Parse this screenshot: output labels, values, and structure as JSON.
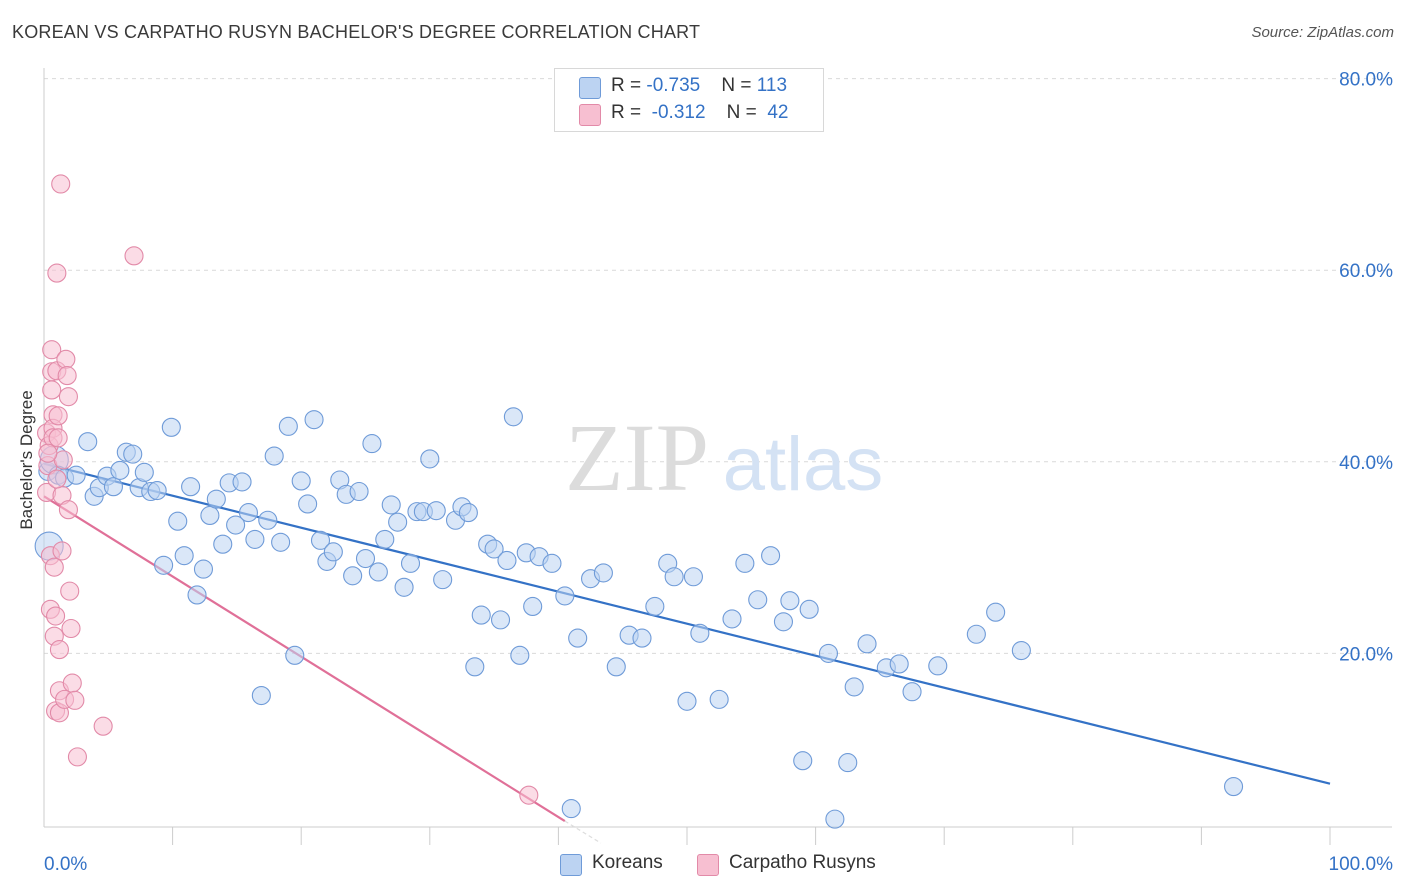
{
  "header": {
    "title": "KOREAN VS CARPATHO RUSYN BACHELOR'S DEGREE CORRELATION CHART",
    "source": "Source: ZipAtlas.com"
  },
  "watermark": {
    "zip": "ZIP",
    "atlas": "atlas"
  },
  "colors": {
    "blue": "#3472c6",
    "blue_fill": "#bcd3f2",
    "pink": "#e07098",
    "pink_fill": "#f7bfd1",
    "grid": "#d9d9d9",
    "tick_label": "#3472c6"
  },
  "legend": {
    "rows": [
      {
        "r_label": "R = ",
        "r_value": "-0.735",
        "n_label": "N = ",
        "n_value": "113",
        "color": "#bcd3f2",
        "border": "#6f9bd8"
      },
      {
        "r_label": "R = ",
        "r_value": "-0.312",
        "n_label": "N = ",
        "n_value": "42",
        "color": "#f7bfd1",
        "border": "#e28aa8"
      }
    ]
  },
  "bottom_legend": {
    "koreans": "Koreans",
    "rusyns": "Carpatho Rusyns"
  },
  "chart_data": {
    "type": "scatter",
    "xlabel": "",
    "ylabel": "Bachelor's Degree",
    "xlim": [
      0,
      100
    ],
    "ylim": [
      0,
      82
    ],
    "x_tick_labels": [
      "0.0%",
      "100.0%"
    ],
    "y_ticks": [
      20,
      40,
      60,
      80
    ],
    "y_tick_labels": [
      "20.0%",
      "40.0%",
      "60.0%",
      "80.0%"
    ],
    "grid": true,
    "legend_position": "top-center",
    "series": [
      {
        "name": "Koreans",
        "color": "#3472c6",
        "trend": {
          "x": [
            0,
            100
          ],
          "y": [
            39.8,
            6.4
          ]
        },
        "points": [
          [
            0.3,
            39.0
          ],
          [
            0.4,
            31.2
          ],
          [
            0.8,
            40.2
          ],
          [
            1.1,
            38.6
          ],
          [
            1.6,
            38.3
          ],
          [
            2.5,
            38.6
          ],
          [
            3.4,
            42.1
          ],
          [
            3.9,
            36.4
          ],
          [
            4.3,
            37.3
          ],
          [
            4.9,
            38.5
          ],
          [
            5.4,
            37.4
          ],
          [
            5.9,
            39.1
          ],
          [
            6.4,
            41.0
          ],
          [
            6.9,
            40.8
          ],
          [
            7.4,
            37.3
          ],
          [
            7.8,
            38.9
          ],
          [
            8.3,
            36.9
          ],
          [
            8.8,
            37.0
          ],
          [
            9.3,
            29.2
          ],
          [
            9.9,
            43.6
          ],
          [
            10.4,
            33.8
          ],
          [
            10.9,
            30.2
          ],
          [
            11.4,
            37.4
          ],
          [
            11.9,
            26.1
          ],
          [
            12.4,
            28.8
          ],
          [
            12.9,
            34.4
          ],
          [
            13.4,
            36.1
          ],
          [
            13.9,
            31.4
          ],
          [
            14.4,
            37.8
          ],
          [
            14.9,
            33.4
          ],
          [
            15.4,
            37.9
          ],
          [
            15.9,
            34.7
          ],
          [
            16.4,
            31.9
          ],
          [
            16.9,
            15.6
          ],
          [
            17.4,
            33.9
          ],
          [
            17.9,
            40.6
          ],
          [
            18.4,
            31.6
          ],
          [
            19.0,
            43.7
          ],
          [
            19.5,
            19.8
          ],
          [
            20.0,
            38.0
          ],
          [
            20.5,
            35.6
          ],
          [
            21.0,
            44.4
          ],
          [
            21.5,
            31.8
          ],
          [
            22.0,
            29.6
          ],
          [
            22.5,
            30.6
          ],
          [
            23.0,
            38.1
          ],
          [
            23.5,
            36.6
          ],
          [
            24.0,
            28.1
          ],
          [
            24.5,
            36.9
          ],
          [
            25.0,
            29.9
          ],
          [
            25.5,
            41.9
          ],
          [
            26.0,
            28.5
          ],
          [
            26.5,
            31.9
          ],
          [
            27.0,
            35.5
          ],
          [
            27.5,
            33.7
          ],
          [
            28.0,
            26.9
          ],
          [
            28.5,
            29.4
          ],
          [
            29.0,
            34.8
          ],
          [
            29.5,
            34.8
          ],
          [
            30.0,
            40.3
          ],
          [
            30.5,
            34.9
          ],
          [
            31.0,
            27.7
          ],
          [
            32.0,
            33.9
          ],
          [
            32.5,
            35.3
          ],
          [
            33.0,
            34.7
          ],
          [
            33.5,
            18.6
          ],
          [
            34.0,
            24.0
          ],
          [
            34.5,
            31.4
          ],
          [
            35.0,
            30.9
          ],
          [
            35.5,
            23.5
          ],
          [
            36.0,
            29.7
          ],
          [
            36.5,
            44.7
          ],
          [
            37.0,
            19.8
          ],
          [
            37.5,
            30.5
          ],
          [
            38.0,
            24.9
          ],
          [
            38.5,
            30.1
          ],
          [
            39.5,
            29.4
          ],
          [
            40.5,
            26.0
          ],
          [
            41.0,
            3.8
          ],
          [
            41.5,
            21.6
          ],
          [
            42.5,
            27.8
          ],
          [
            43.5,
            28.4
          ],
          [
            44.5,
            18.6
          ],
          [
            45.5,
            21.9
          ],
          [
            46.5,
            21.6
          ],
          [
            47.5,
            24.9
          ],
          [
            48.5,
            29.4
          ],
          [
            49.0,
            28.0
          ],
          [
            50.0,
            15.0
          ],
          [
            50.5,
            28.0
          ],
          [
            51.0,
            22.1
          ],
          [
            52.5,
            15.2
          ],
          [
            53.5,
            23.6
          ],
          [
            54.5,
            29.4
          ],
          [
            55.5,
            25.6
          ],
          [
            56.5,
            30.2
          ],
          [
            57.5,
            23.3
          ],
          [
            58.0,
            25.5
          ],
          [
            59.0,
            8.8
          ],
          [
            59.5,
            24.6
          ],
          [
            61.0,
            20.0
          ],
          [
            61.5,
            2.7
          ],
          [
            62.5,
            8.6
          ],
          [
            63.0,
            16.5
          ],
          [
            64.0,
            21.0
          ],
          [
            65.5,
            18.5
          ],
          [
            66.5,
            18.9
          ],
          [
            67.5,
            16.0
          ],
          [
            69.5,
            18.7
          ],
          [
            72.5,
            22.0
          ],
          [
            74.0,
            24.3
          ],
          [
            76.0,
            20.3
          ],
          [
            92.5,
            6.1
          ]
        ]
      },
      {
        "name": "Carpatho Rusyns",
        "color": "#e07098",
        "trend": {
          "x": [
            0,
            40.5
          ],
          "y": [
            36.4,
            2.5
          ]
        },
        "points": [
          [
            0.2,
            43.0
          ],
          [
            0.2,
            36.8
          ],
          [
            0.3,
            39.6
          ],
          [
            0.4,
            41.7
          ],
          [
            0.5,
            24.6
          ],
          [
            0.5,
            30.2
          ],
          [
            0.6,
            49.4
          ],
          [
            0.6,
            47.5
          ],
          [
            0.6,
            51.7
          ],
          [
            0.7,
            44.9
          ],
          [
            0.7,
            43.5
          ],
          [
            0.7,
            42.5
          ],
          [
            0.8,
            21.8
          ],
          [
            0.8,
            29.0
          ],
          [
            0.9,
            14.0
          ],
          [
            0.9,
            23.9
          ],
          [
            1.0,
            59.7
          ],
          [
            1.0,
            49.5
          ],
          [
            1.1,
            44.8
          ],
          [
            1.1,
            42.5
          ],
          [
            1.2,
            13.8
          ],
          [
            1.2,
            20.4
          ],
          [
            1.2,
            16.1
          ],
          [
            1.3,
            69.0
          ],
          [
            1.4,
            36.5
          ],
          [
            1.4,
            30.7
          ],
          [
            1.5,
            40.2
          ],
          [
            1.6,
            15.2
          ],
          [
            1.7,
            50.7
          ],
          [
            1.8,
            49.0
          ],
          [
            1.9,
            46.8
          ],
          [
            1.9,
            35.0
          ],
          [
            2.0,
            26.5
          ],
          [
            2.1,
            22.6
          ],
          [
            2.2,
            16.9
          ],
          [
            2.4,
            15.1
          ],
          [
            2.6,
            9.2
          ],
          [
            4.6,
            12.4
          ],
          [
            7.0,
            61.5
          ],
          [
            37.7,
            5.2
          ],
          [
            0.3,
            40.9
          ],
          [
            1.0,
            38.2
          ]
        ]
      }
    ]
  }
}
